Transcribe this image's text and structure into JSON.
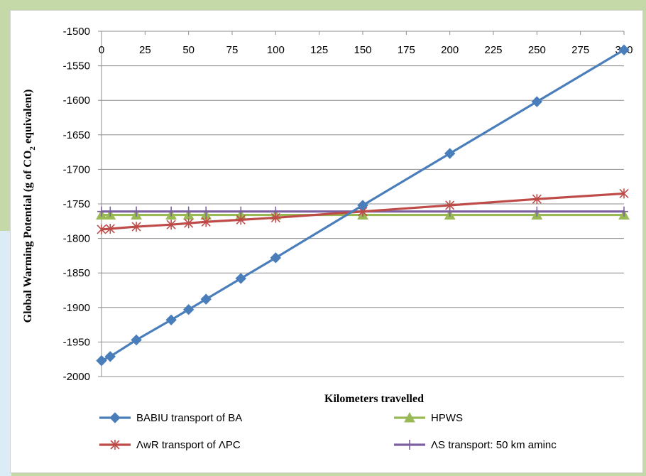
{
  "chart_data": {
    "type": "line",
    "xlabel": "Kilometers travelled",
    "ylabel": "Global Warming Potential (g of CO₂ equivalent)",
    "ylabel_parts": {
      "main": "Global Warming Potential (g of CO",
      "sub": "2",
      "tail": " equivalent)"
    },
    "xlim": [
      0,
      300
    ],
    "ylim": [
      -2000,
      -1500
    ],
    "x_ticks": [
      0,
      25,
      50,
      75,
      100,
      125,
      150,
      175,
      200,
      225,
      250,
      275,
      300
    ],
    "y_ticks": [
      -1500,
      -1550,
      -1600,
      -1650,
      -1700,
      -1750,
      -1800,
      -1850,
      -1900,
      -1950,
      -2000
    ],
    "x_tick_labels": [
      "0",
      "25",
      "50",
      "75",
      "100",
      "125",
      "150",
      "175",
      "200",
      "225",
      "250",
      "275",
      "300"
    ],
    "y_tick_labels": [
      "-1500",
      "-1550",
      "-1600",
      "-1650",
      "-1700",
      "-1750",
      "-1800",
      "-1850",
      "-1900",
      "-1950",
      "-2000"
    ],
    "grid": true,
    "legend_position": "bottom",
    "x": [
      0,
      5,
      20,
      40,
      50,
      60,
      80,
      100,
      150,
      200,
      250,
      300
    ],
    "series": [
      {
        "name": "BABIU transport of BA",
        "color": "#4a7ebb",
        "marker": "diamond",
        "values": [
          -1977,
          -1971,
          -1947,
          -1918,
          -1903,
          -1888,
          -1858,
          -1828,
          -1752,
          -1677,
          -1602,
          -1527
        ]
      },
      {
        "name": "HPWS",
        "color": "#98b954",
        "marker": "triangle",
        "values": [
          -1766,
          -1766,
          -1766,
          -1766,
          -1766,
          -1766,
          -1766,
          -1766,
          -1766,
          -1766,
          -1766,
          -1766
        ]
      },
      {
        "name": "ΛwR transport of ΛPC",
        "color": "#be4b48",
        "marker": "star",
        "values": [
          -1787,
          -1786,
          -1783,
          -1780,
          -1778,
          -1776,
          -1773,
          -1770,
          -1761,
          -1752,
          -1743,
          -1735
        ]
      },
      {
        "name": "ΛS transport: 50 km aminc",
        "color": "#7d60a0",
        "marker": "plus",
        "values": [
          -1761,
          -1761,
          -1761,
          -1761,
          -1761,
          -1761,
          -1761,
          -1761,
          -1761,
          -1761,
          -1761,
          -1761
        ]
      }
    ]
  }
}
